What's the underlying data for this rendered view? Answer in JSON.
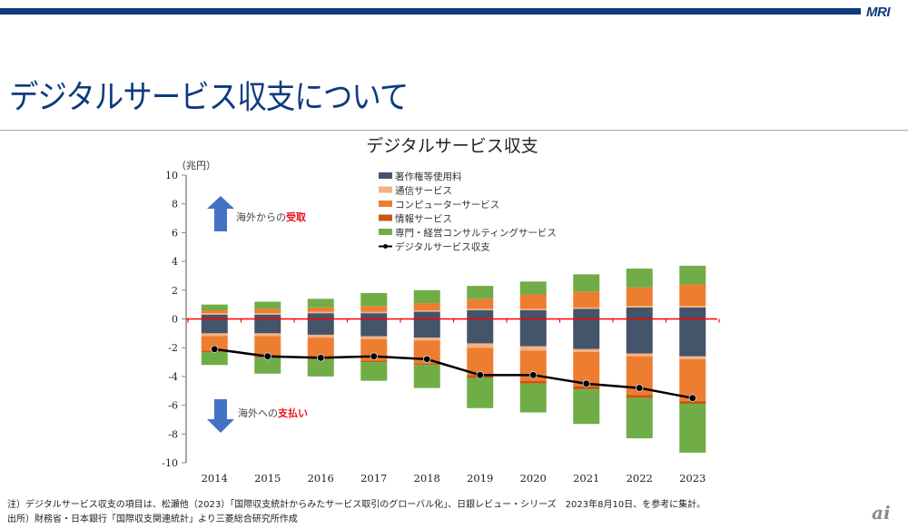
{
  "header": {
    "logo": "MRI",
    "title": "デジタルサービス収支について"
  },
  "notes": [
    "注）デジタルサービス収支の項目は、松瀬他（2023）「国際収支統計からみたサービス取引のグローバル化」、日銀レビュー・シリーズ　2023年8月10日、を参考に集計。",
    "出所）財務省・日本銀行「国際収支関連統計」より三菱総合研究所作成"
  ],
  "watermark": "ai",
  "annotations": {
    "receipt_prefix": "海外からの",
    "receipt_emph": "受取",
    "payment_prefix": "海外への",
    "payment_emph": "支払い",
    "arrow_color": "#4472c4",
    "emph_color": "#e8141b"
  },
  "chart_data": {
    "type": "bar",
    "stacked": true,
    "title": "デジタルサービス収支",
    "ylabel": "（兆円）",
    "xlabel": "",
    "ylim": [
      -10,
      10
    ],
    "yticks": [
      10,
      8,
      6,
      4,
      2,
      0,
      -2,
      -4,
      -6,
      -8,
      -10
    ],
    "grid": false,
    "legend_position": "top-center",
    "categories": [
      "2014",
      "2015",
      "2016",
      "2017",
      "2018",
      "2019",
      "2020",
      "2021",
      "2022",
      "2023"
    ],
    "series": [
      {
        "name": "著作権等使用料",
        "color": "#44546a",
        "positive": [
          0.3,
          0.3,
          0.4,
          0.4,
          0.5,
          0.6,
          0.6,
          0.7,
          0.8,
          0.8
        ],
        "negative": [
          -1.0,
          -1.0,
          -1.1,
          -1.2,
          -1.3,
          -1.7,
          -1.9,
          -2.1,
          -2.4,
          -2.6
        ]
      },
      {
        "name": "通信サービス",
        "color": "#f4b183",
        "positive": [
          0.1,
          0.1,
          0.1,
          0.1,
          0.1,
          0.1,
          0.1,
          0.1,
          0.1,
          0.1
        ],
        "negative": [
          -0.2,
          -0.2,
          -0.2,
          -0.2,
          -0.2,
          -0.3,
          -0.3,
          -0.2,
          -0.2,
          -0.2
        ]
      },
      {
        "name": "コンピューターサービス",
        "color": "#ed7d31",
        "positive": [
          0.2,
          0.3,
          0.3,
          0.4,
          0.5,
          0.7,
          1.0,
          1.1,
          1.3,
          1.5
        ],
        "negative": [
          -1.0,
          -1.4,
          -1.4,
          -1.5,
          -1.6,
          -1.9,
          -2.1,
          -2.4,
          -2.7,
          -2.9
        ]
      },
      {
        "name": "情報サービス",
        "color": "#c55a11",
        "positive": [
          0.0,
          0.0,
          0.0,
          0.0,
          0.0,
          0.0,
          0.0,
          0.0,
          0.0,
          0.0
        ],
        "negative": [
          -0.1,
          -0.1,
          -0.1,
          -0.1,
          -0.1,
          -0.2,
          -0.2,
          -0.2,
          -0.2,
          -0.2
        ]
      },
      {
        "name": "専門・経営コンサルティングサービス",
        "color": "#70ad47",
        "positive": [
          0.4,
          0.5,
          0.6,
          0.9,
          0.9,
          0.9,
          0.9,
          1.2,
          1.3,
          1.3
        ],
        "negative": [
          -0.9,
          -1.1,
          -1.2,
          -1.3,
          -1.6,
          -2.1,
          -2.0,
          -2.4,
          -2.8,
          -3.4
        ]
      }
    ],
    "line": {
      "name": "デジタルサービス収支",
      "color": "#000000",
      "values": [
        -2.1,
        -2.6,
        -2.7,
        -2.6,
        -2.8,
        -3.9,
        -3.9,
        -4.5,
        -4.8,
        -5.5
      ]
    },
    "zero_line_color": "#ff0000"
  }
}
